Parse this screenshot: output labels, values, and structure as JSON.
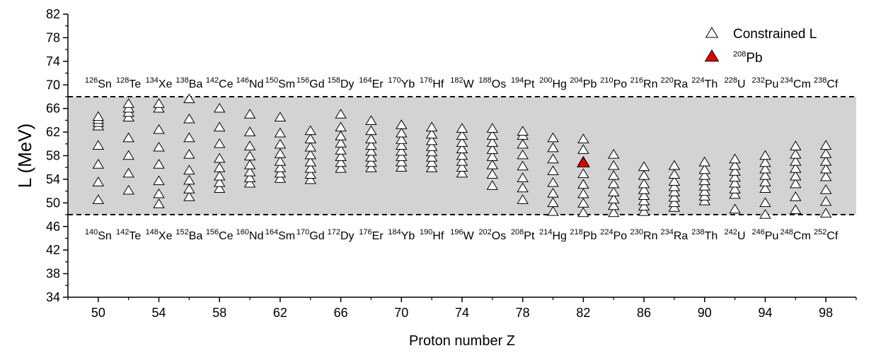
{
  "chart_data": {
    "type": "scatter",
    "xlabel": "Proton number Z",
    "ylabel": "L (MeV)",
    "xlim": [
      48,
      100
    ],
    "ylim": [
      34,
      82
    ],
    "xticks": [
      50,
      54,
      58,
      62,
      66,
      70,
      74,
      78,
      82,
      86,
      90,
      94,
      98
    ],
    "yticks": [
      34,
      38,
      42,
      46,
      50,
      54,
      58,
      62,
      66,
      70,
      74,
      78,
      82
    ],
    "grid": false,
    "legend_position": "top-right",
    "band": {
      "y_min": 48,
      "y_max": 68,
      "color": "#d3d3d3"
    },
    "reference_lines": [
      48,
      68
    ],
    "series": [
      {
        "name": "Constrained L",
        "marker": "open-triangle",
        "color": "#ffffff",
        "points": [
          [
            50,
            50.5
          ],
          [
            50,
            53.5
          ],
          [
            50,
            56.5
          ],
          [
            50,
            59.7
          ],
          [
            50,
            63.0
          ],
          [
            50,
            63.6
          ],
          [
            50,
            64.1
          ],
          [
            50,
            64.6
          ],
          [
            52,
            52.1
          ],
          [
            52,
            55.0
          ],
          [
            52,
            58.0
          ],
          [
            52,
            61.0
          ],
          [
            52,
            64.5
          ],
          [
            52,
            65.3
          ],
          [
            52,
            66.0
          ],
          [
            52,
            66.8
          ],
          [
            54,
            49.8
          ],
          [
            54,
            51.5
          ],
          [
            54,
            53.7
          ],
          [
            54,
            56.5
          ],
          [
            54,
            59.4
          ],
          [
            54,
            62.4
          ],
          [
            54,
            66.0
          ],
          [
            54,
            66.8
          ],
          [
            56,
            51.0
          ],
          [
            56,
            52.3
          ],
          [
            56,
            53.8
          ],
          [
            56,
            55.5
          ],
          [
            56,
            58.2
          ],
          [
            56,
            61.0
          ],
          [
            56,
            64.2
          ],
          [
            56,
            67.6
          ],
          [
            58,
            52.4
          ],
          [
            58,
            53.4
          ],
          [
            58,
            54.5
          ],
          [
            58,
            55.9
          ],
          [
            58,
            57.5
          ],
          [
            58,
            60.0
          ],
          [
            58,
            62.8
          ],
          [
            58,
            66.0
          ],
          [
            60,
            53.3
          ],
          [
            60,
            54.2
          ],
          [
            60,
            55.2
          ],
          [
            60,
            56.4
          ],
          [
            60,
            57.9
          ],
          [
            60,
            59.6
          ],
          [
            60,
            62.0
          ],
          [
            60,
            65.0
          ],
          [
            62,
            54.1
          ],
          [
            62,
            55.0
          ],
          [
            62,
            55.9
          ],
          [
            62,
            57.0
          ],
          [
            62,
            58.3
          ],
          [
            62,
            59.9
          ],
          [
            62,
            61.8
          ],
          [
            62,
            64.5
          ],
          [
            64,
            53.9
          ],
          [
            64,
            54.8
          ],
          [
            64,
            55.8
          ],
          [
            64,
            56.9
          ],
          [
            64,
            58.1
          ],
          [
            64,
            59.4
          ],
          [
            64,
            60.8
          ],
          [
            64,
            62.2
          ],
          [
            66,
            55.8
          ],
          [
            66,
            56.8
          ],
          [
            66,
            57.8
          ],
          [
            66,
            58.9
          ],
          [
            66,
            60.1
          ],
          [
            66,
            61.3
          ],
          [
            66,
            62.8
          ],
          [
            66,
            65.0
          ],
          [
            68,
            55.9
          ],
          [
            68,
            56.8
          ],
          [
            68,
            57.7
          ],
          [
            68,
            58.7
          ],
          [
            68,
            59.7
          ],
          [
            68,
            60.8
          ],
          [
            68,
            62.2
          ],
          [
            68,
            63.9
          ],
          [
            70,
            56.0
          ],
          [
            70,
            56.9
          ],
          [
            70,
            57.8
          ],
          [
            70,
            58.7
          ],
          [
            70,
            59.7
          ],
          [
            70,
            60.7
          ],
          [
            70,
            61.8
          ],
          [
            70,
            63.2
          ],
          [
            72,
            55.9
          ],
          [
            72,
            56.8
          ],
          [
            72,
            57.7
          ],
          [
            72,
            58.6
          ],
          [
            72,
            59.5
          ],
          [
            72,
            60.5
          ],
          [
            72,
            61.6
          ],
          [
            72,
            62.8
          ],
          [
            74,
            55.0
          ],
          [
            74,
            56.0
          ],
          [
            74,
            57.0
          ],
          [
            74,
            58.0
          ],
          [
            74,
            59.1
          ],
          [
            74,
            60.2
          ],
          [
            74,
            61.4
          ],
          [
            74,
            62.6
          ],
          [
            76,
            52.9
          ],
          [
            76,
            54.8
          ],
          [
            76,
            56.4
          ],
          [
            76,
            57.8
          ],
          [
            76,
            59.0
          ],
          [
            76,
            60.2
          ],
          [
            76,
            61.4
          ],
          [
            76,
            62.6
          ],
          [
            78,
            50.5
          ],
          [
            78,
            52.5
          ],
          [
            78,
            54.2
          ],
          [
            78,
            56.2
          ],
          [
            78,
            58.1
          ],
          [
            78,
            59.9
          ],
          [
            78,
            61.4
          ],
          [
            78,
            62.1
          ],
          [
            80,
            48.5
          ],
          [
            80,
            50.0
          ],
          [
            80,
            51.6
          ],
          [
            80,
            53.4
          ],
          [
            80,
            55.4
          ],
          [
            80,
            57.4
          ],
          [
            80,
            59.3
          ],
          [
            80,
            61.0
          ],
          [
            82,
            48.3
          ],
          [
            82,
            49.9
          ],
          [
            82,
            51.5
          ],
          [
            82,
            53.1
          ],
          [
            82,
            54.9
          ],
          [
            82,
            57.0
          ],
          [
            82,
            59.0
          ],
          [
            82,
            60.8
          ],
          [
            84,
            48.3
          ],
          [
            84,
            49.5
          ],
          [
            84,
            50.6
          ],
          [
            84,
            51.8
          ],
          [
            84,
            53.2
          ],
          [
            84,
            54.6
          ],
          [
            84,
            56.3
          ],
          [
            84,
            58.2
          ],
          [
            86,
            48.5
          ],
          [
            86,
            49.4
          ],
          [
            86,
            50.3
          ],
          [
            86,
            51.2
          ],
          [
            86,
            52.2
          ],
          [
            86,
            53.2
          ],
          [
            86,
            54.6
          ],
          [
            86,
            56.1
          ],
          [
            88,
            49.2
          ],
          [
            88,
            50.0
          ],
          [
            88,
            50.9
          ],
          [
            88,
            51.8
          ],
          [
            88,
            52.7
          ],
          [
            88,
            53.6
          ],
          [
            88,
            54.8
          ],
          [
            88,
            56.3
          ],
          [
            90,
            50.3
          ],
          [
            90,
            51.1
          ],
          [
            90,
            51.9
          ],
          [
            90,
            52.8
          ],
          [
            90,
            53.7
          ],
          [
            90,
            54.6
          ],
          [
            90,
            55.6
          ],
          [
            90,
            56.9
          ],
          [
            92,
            48.9
          ],
          [
            92,
            51.4
          ],
          [
            92,
            52.3
          ],
          [
            92,
            53.3
          ],
          [
            92,
            54.3
          ],
          [
            92,
            55.3
          ],
          [
            92,
            56.3
          ],
          [
            92,
            57.4
          ],
          [
            94,
            48.0
          ],
          [
            94,
            50.0
          ],
          [
            94,
            52.4
          ],
          [
            94,
            53.5
          ],
          [
            94,
            54.6
          ],
          [
            94,
            55.7
          ],
          [
            94,
            56.8
          ],
          [
            94,
            58.0
          ],
          [
            96,
            48.8
          ],
          [
            96,
            51.0
          ],
          [
            96,
            53.2
          ],
          [
            96,
            54.5
          ],
          [
            96,
            55.8
          ],
          [
            96,
            57.0
          ],
          [
            96,
            58.2
          ],
          [
            96,
            59.6
          ],
          [
            98,
            48.2
          ],
          [
            98,
            50.2
          ],
          [
            98,
            52.2
          ],
          [
            98,
            54.4
          ],
          [
            98,
            55.7
          ],
          [
            98,
            57.0
          ],
          [
            98,
            58.3
          ],
          [
            98,
            59.7
          ]
        ]
      },
      {
        "name": "208Pb",
        "legend_sup": "208",
        "legend_text": "Pb",
        "marker": "filled-triangle",
        "color": "#e00000",
        "points": [
          [
            82,
            56.8
          ]
        ]
      }
    ],
    "annotations_top": [
      {
        "z": 50,
        "mass": "126",
        "sym": "Sn"
      },
      {
        "z": 52,
        "mass": "128",
        "sym": "Te"
      },
      {
        "z": 54,
        "mass": "134",
        "sym": "Xe"
      },
      {
        "z": 56,
        "mass": "138",
        "sym": "Ba"
      },
      {
        "z": 58,
        "mass": "142",
        "sym": "Ce"
      },
      {
        "z": 60,
        "mass": "146",
        "sym": "Nd"
      },
      {
        "z": 62,
        "mass": "150",
        "sym": "Sm"
      },
      {
        "z": 64,
        "mass": "156",
        "sym": "Gd"
      },
      {
        "z": 66,
        "mass": "158",
        "sym": "Dy"
      },
      {
        "z": 68,
        "mass": "164",
        "sym": "Er"
      },
      {
        "z": 70,
        "mass": "170",
        "sym": "Yb"
      },
      {
        "z": 72,
        "mass": "176",
        "sym": "Hf"
      },
      {
        "z": 74,
        "mass": "182",
        "sym": "W"
      },
      {
        "z": 76,
        "mass": "188",
        "sym": "Os"
      },
      {
        "z": 78,
        "mass": "194",
        "sym": "Pt"
      },
      {
        "z": 80,
        "mass": "200",
        "sym": "Hg"
      },
      {
        "z": 82,
        "mass": "204",
        "sym": "Pb"
      },
      {
        "z": 84,
        "mass": "210",
        "sym": "Po"
      },
      {
        "z": 86,
        "mass": "216",
        "sym": "Rn"
      },
      {
        "z": 88,
        "mass": "220",
        "sym": "Ra"
      },
      {
        "z": 90,
        "mass": "224",
        "sym": "Th"
      },
      {
        "z": 92,
        "mass": "228",
        "sym": "U"
      },
      {
        "z": 94,
        "mass": "232",
        "sym": "Pu"
      },
      {
        "z": 96,
        "mass": "234",
        "sym": "Cm"
      },
      {
        "z": 98,
        "mass": "238",
        "sym": "Cf"
      }
    ],
    "annotations_bottom": [
      {
        "z": 50,
        "mass": "140",
        "sym": "Sn"
      },
      {
        "z": 52,
        "mass": "142",
        "sym": "Te"
      },
      {
        "z": 54,
        "mass": "148",
        "sym": "Xe"
      },
      {
        "z": 56,
        "mass": "152",
        "sym": "Ba"
      },
      {
        "z": 58,
        "mass": "156",
        "sym": "Ce"
      },
      {
        "z": 60,
        "mass": "160",
        "sym": "Nd"
      },
      {
        "z": 62,
        "mass": "164",
        "sym": "Sm"
      },
      {
        "z": 64,
        "mass": "170",
        "sym": "Gd"
      },
      {
        "z": 66,
        "mass": "172",
        "sym": "Dy"
      },
      {
        "z": 68,
        "mass": "176",
        "sym": "Er"
      },
      {
        "z": 70,
        "mass": "184",
        "sym": "Yb"
      },
      {
        "z": 72,
        "mass": "190",
        "sym": "Hf"
      },
      {
        "z": 74,
        "mass": "196",
        "sym": "W"
      },
      {
        "z": 76,
        "mass": "202",
        "sym": "Os"
      },
      {
        "z": 78,
        "mass": "208",
        "sym": "Pt"
      },
      {
        "z": 80,
        "mass": "214",
        "sym": "Hg"
      },
      {
        "z": 82,
        "mass": "218",
        "sym": "Pb"
      },
      {
        "z": 84,
        "mass": "224",
        "sym": "Po"
      },
      {
        "z": 86,
        "mass": "230",
        "sym": "Rn"
      },
      {
        "z": 88,
        "mass": "234",
        "sym": "Ra"
      },
      {
        "z": 90,
        "mass": "238",
        "sym": "Th"
      },
      {
        "z": 92,
        "mass": "242",
        "sym": "U"
      },
      {
        "z": 94,
        "mass": "246",
        "sym": "Pu"
      },
      {
        "z": 96,
        "mass": "248",
        "sym": "Cm"
      },
      {
        "z": 98,
        "mass": "252",
        "sym": "Cf"
      }
    ]
  }
}
